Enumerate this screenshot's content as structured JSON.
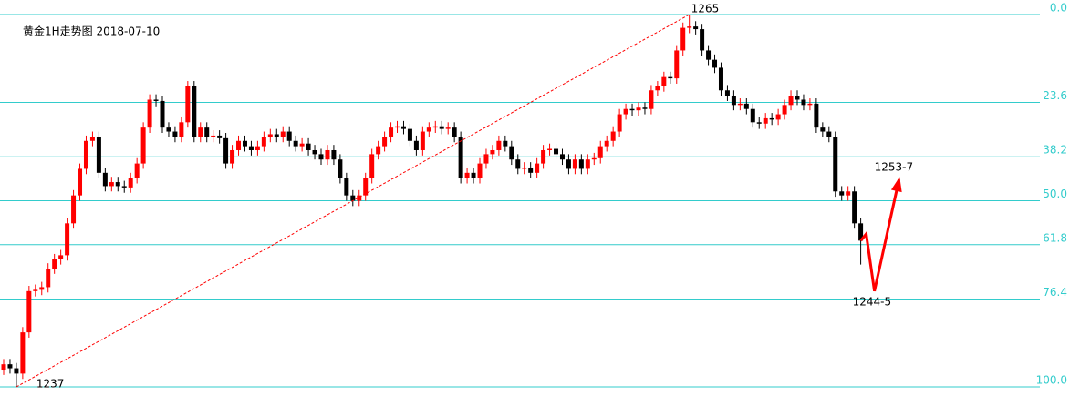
{
  "chart_data": {
    "type": "candlestick",
    "title": "黄金1H走势图 2018-07-10",
    "ylim": [
      1237,
      1265
    ],
    "yticks": [
      {
        "value": 1265,
        "label": "0.0"
      },
      {
        "value": 1258.392,
        "label": "23.6"
      },
      {
        "value": 1254.304,
        "label": "38.2"
      },
      {
        "value": 1251,
        "label": "50.0"
      },
      {
        "value": 1247.696,
        "label": "61.8"
      },
      {
        "value": 1243.608,
        "label": "76.4"
      },
      {
        "value": 1237,
        "label": "100.0"
      }
    ],
    "grid": true,
    "up_color": "#ff0000",
    "down_color": "#000000",
    "grid_color": "#33cccc",
    "open": [
      1238.3,
      1238.7,
      1238.4,
      1238.0,
      1241.1,
      1244.2,
      1244.3,
      1244.5,
      1245.9,
      1246.6,
      1246.9,
      1249.3,
      1251.4,
      1253.4,
      1255.5,
      1255.8,
      1253.1,
      1252.1,
      1252.4,
      1252.1,
      1252.0,
      1252.7,
      1253.8,
      1256.5,
      1258.6,
      1258.5,
      1256.5,
      1256.2,
      1255.8,
      1256.9,
      1259.6,
      1255.8,
      1256.5,
      1255.8,
      1255.9,
      1255.7,
      1253.8,
      1254.8,
      1255.5,
      1255.1,
      1254.8,
      1255.1,
      1255.8,
      1256.0,
      1255.8,
      1256.2,
      1255.5,
      1255.1,
      1255.3,
      1254.8,
      1254.5,
      1254.1,
      1254.8,
      1254.1,
      1252.7,
      1251.4,
      1251.0,
      1251.4,
      1252.7,
      1254.5,
      1255.1,
      1255.8,
      1256.5,
      1256.6,
      1256.4,
      1255.5,
      1254.8,
      1256.2,
      1256.5,
      1256.6,
      1256.4,
      1256.5,
      1255.8,
      1252.7,
      1253.1,
      1252.7,
      1253.8,
      1254.5,
      1254.8,
      1255.5,
      1255.1,
      1254.1,
      1253.4,
      1253.5,
      1253.1,
      1253.8,
      1254.8,
      1254.9,
      1254.5,
      1254.1,
      1253.4,
      1254.1,
      1253.4,
      1254.1,
      1254.2,
      1255.1,
      1255.5,
      1256.2,
      1257.5,
      1257.9,
      1257.8,
      1258.0,
      1257.9,
      1259.3,
      1259.6,
      1260.3,
      1260.2,
      1262.3,
      1264.0,
      1264.1,
      1263.9,
      1262.3,
      1261.6,
      1261.0,
      1259.3,
      1258.9,
      1258.2,
      1258.3,
      1257.9,
      1256.9,
      1256.8,
      1257.2,
      1257.1,
      1257.5,
      1258.2,
      1258.9,
      1258.6,
      1258.2,
      1258.3,
      1256.5,
      1256.2,
      1255.8,
      1251.7,
      1251.4,
      1251.7,
      1249.3
    ],
    "high": [
      1239.1,
      1239.1,
      1238.8,
      1241.5,
      1244.6,
      1244.7,
      1244.9,
      1246.3,
      1247.0,
      1247.3,
      1249.7,
      1251.8,
      1253.8,
      1255.9,
      1256.2,
      1256.2,
      1253.5,
      1252.8,
      1252.8,
      1252.5,
      1253.1,
      1254.2,
      1256.9,
      1259.0,
      1259.0,
      1258.9,
      1256.9,
      1256.6,
      1257.3,
      1260.0,
      1260.0,
      1256.9,
      1256.9,
      1256.3,
      1256.3,
      1256.1,
      1255.2,
      1255.9,
      1255.9,
      1255.5,
      1255.5,
      1256.2,
      1256.4,
      1256.4,
      1256.6,
      1256.6,
      1255.9,
      1255.7,
      1255.7,
      1255.2,
      1254.9,
      1255.2,
      1255.2,
      1254.5,
      1253.1,
      1251.8,
      1251.8,
      1253.1,
      1254.9,
      1255.5,
      1256.2,
      1256.9,
      1257.0,
      1257.0,
      1256.8,
      1255.9,
      1256.6,
      1256.9,
      1257.0,
      1257.0,
      1256.9,
      1256.9,
      1256.2,
      1253.5,
      1253.5,
      1254.2,
      1254.9,
      1255.2,
      1255.9,
      1255.9,
      1255.5,
      1254.5,
      1253.9,
      1253.9,
      1254.2,
      1255.2,
      1255.3,
      1255.3,
      1254.9,
      1254.5,
      1254.5,
      1254.5,
      1254.5,
      1254.6,
      1255.5,
      1255.9,
      1256.6,
      1257.9,
      1258.3,
      1258.3,
      1258.4,
      1258.4,
      1259.7,
      1260.0,
      1260.7,
      1260.7,
      1262.7,
      1264.4,
      1265.0,
      1264.5,
      1264.3,
      1262.7,
      1262.0,
      1261.4,
      1259.7,
      1259.3,
      1258.7,
      1258.7,
      1258.3,
      1257.3,
      1257.6,
      1257.6,
      1257.9,
      1258.6,
      1259.3,
      1259.3,
      1259.0,
      1258.7,
      1258.7,
      1256.9,
      1256.6,
      1256.2,
      1252.1,
      1252.1,
      1252.1,
      1249.7
    ],
    "low": [
      1237.9,
      1238.0,
      1237.0,
      1237.6,
      1240.7,
      1243.8,
      1243.9,
      1244.1,
      1245.5,
      1246.2,
      1246.5,
      1248.9,
      1251.0,
      1253.0,
      1255.1,
      1252.7,
      1251.7,
      1251.7,
      1251.7,
      1251.6,
      1251.6,
      1252.3,
      1253.4,
      1256.1,
      1258.1,
      1256.1,
      1255.8,
      1255.4,
      1255.4,
      1256.5,
      1255.4,
      1255.4,
      1255.4,
      1255.4,
      1255.3,
      1253.4,
      1253.4,
      1254.4,
      1254.7,
      1254.4,
      1254.4,
      1254.7,
      1255.4,
      1255.4,
      1255.4,
      1255.1,
      1254.7,
      1254.7,
      1254.4,
      1254.1,
      1253.7,
      1253.7,
      1253.7,
      1252.3,
      1251.0,
      1250.6,
      1250.6,
      1251.0,
      1252.3,
      1254.1,
      1254.7,
      1255.4,
      1256.1,
      1256.0,
      1255.1,
      1254.4,
      1254.4,
      1255.8,
      1256.1,
      1256.0,
      1256.0,
      1255.4,
      1252.3,
      1252.3,
      1252.3,
      1252.3,
      1253.4,
      1254.1,
      1254.4,
      1254.7,
      1253.7,
      1253.0,
      1253.0,
      1252.7,
      1252.7,
      1253.4,
      1254.4,
      1254.1,
      1253.7,
      1253.0,
      1253.0,
      1253.0,
      1253.0,
      1253.7,
      1253.8,
      1254.7,
      1255.1,
      1255.8,
      1257.1,
      1257.4,
      1257.4,
      1257.5,
      1257.5,
      1258.9,
      1259.2,
      1259.8,
      1259.8,
      1261.9,
      1263.6,
      1263.5,
      1261.9,
      1261.2,
      1260.6,
      1258.9,
      1258.5,
      1257.8,
      1257.8,
      1257.5,
      1256.5,
      1256.4,
      1256.4,
      1256.7,
      1256.7,
      1257.1,
      1257.8,
      1258.2,
      1257.8,
      1257.8,
      1256.1,
      1255.8,
      1255.4,
      1251.3,
      1251.0,
      1251.0,
      1248.9,
      1246.2
    ],
    "close": [
      1238.7,
      1238.4,
      1238.0,
      1241.1,
      1244.2,
      1244.3,
      1244.5,
      1245.9,
      1246.6,
      1246.9,
      1249.3,
      1251.4,
      1253.4,
      1255.5,
      1255.8,
      1253.1,
      1252.1,
      1252.4,
      1252.1,
      1252.0,
      1252.7,
      1253.8,
      1256.5,
      1258.6,
      1258.5,
      1256.5,
      1256.2,
      1255.8,
      1256.9,
      1259.6,
      1255.8,
      1256.5,
      1255.8,
      1255.9,
      1255.7,
      1253.8,
      1254.8,
      1255.5,
      1255.1,
      1254.8,
      1255.1,
      1255.8,
      1256.0,
      1255.8,
      1256.2,
      1255.5,
      1255.1,
      1255.3,
      1254.8,
      1254.5,
      1254.1,
      1254.8,
      1254.1,
      1252.7,
      1251.4,
      1251.0,
      1251.4,
      1252.7,
      1254.5,
      1255.1,
      1255.8,
      1256.5,
      1256.6,
      1256.4,
      1255.5,
      1254.8,
      1256.2,
      1256.5,
      1256.6,
      1256.4,
      1256.5,
      1255.8,
      1252.7,
      1253.1,
      1252.7,
      1253.8,
      1254.5,
      1254.8,
      1255.5,
      1255.1,
      1254.1,
      1253.4,
      1253.5,
      1253.1,
      1253.8,
      1254.8,
      1254.9,
      1254.5,
      1254.1,
      1253.4,
      1254.1,
      1253.4,
      1254.1,
      1254.2,
      1255.1,
      1255.5,
      1256.2,
      1257.5,
      1257.9,
      1257.8,
      1258.0,
      1257.9,
      1259.3,
      1259.6,
      1260.3,
      1260.2,
      1262.3,
      1264.0,
      1264.1,
      1263.9,
      1262.3,
      1261.6,
      1261.0,
      1259.3,
      1258.9,
      1258.2,
      1258.3,
      1257.9,
      1256.9,
      1256.8,
      1257.2,
      1257.1,
      1257.5,
      1258.2,
      1258.9,
      1258.6,
      1258.2,
      1258.3,
      1256.5,
      1256.2,
      1255.8,
      1251.7,
      1251.4,
      1251.7,
      1249.3,
      1248.0
    ],
    "high_label": 1265,
    "low_label": 1237,
    "forecast": [
      1248.5,
      1244.2,
      1252.6
    ],
    "forecast_labels": [
      "1244-5",
      "1253-7"
    ],
    "forecast_color": "#ff0000"
  }
}
